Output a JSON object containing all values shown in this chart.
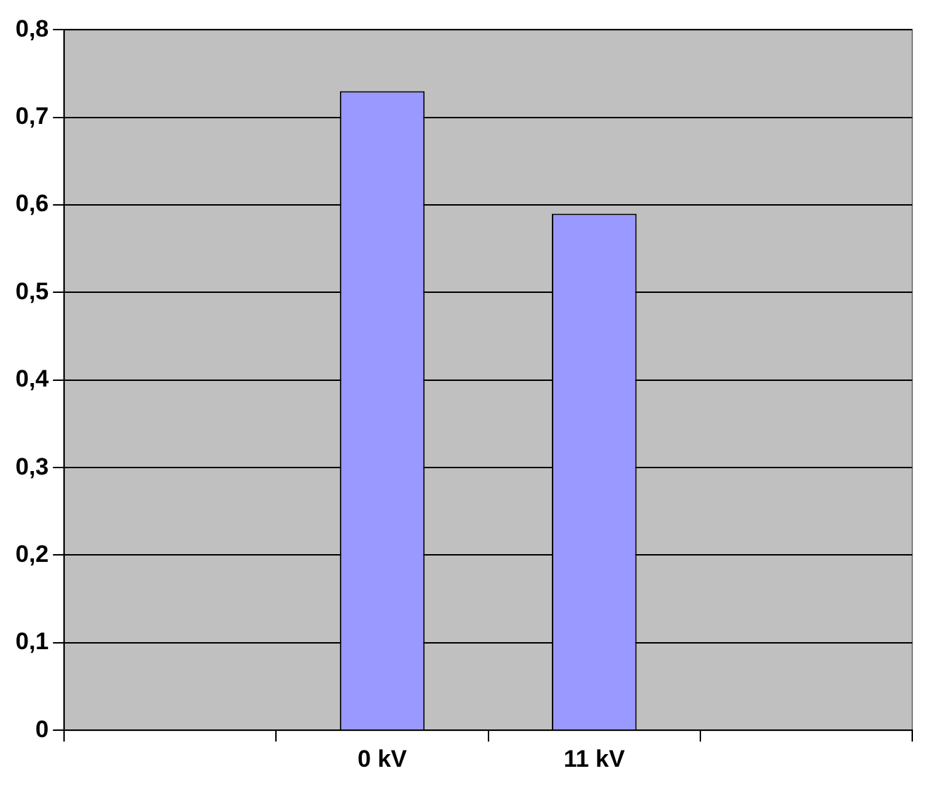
{
  "chart_data": {
    "type": "bar",
    "categories": [
      null,
      "0 kV",
      "11 kV",
      null
    ],
    "values": [
      null,
      0.73,
      0.59,
      null
    ],
    "color": "#9999ff",
    "ylim": [
      0,
      0.8
    ],
    "yticks": [
      {
        "value": 0,
        "label": "0"
      },
      {
        "value": 0.1,
        "label": "0,1"
      },
      {
        "value": 0.2,
        "label": "0,2"
      },
      {
        "value": 0.3,
        "label": "0,3"
      },
      {
        "value": 0.4,
        "label": "0,4"
      },
      {
        "value": 0.5,
        "label": "0,5"
      },
      {
        "value": 0.6,
        "label": "0,6"
      },
      {
        "value": 0.7,
        "label": "0,7"
      },
      {
        "value": 0.8,
        "label": "0,8"
      }
    ],
    "grid": "y"
  }
}
